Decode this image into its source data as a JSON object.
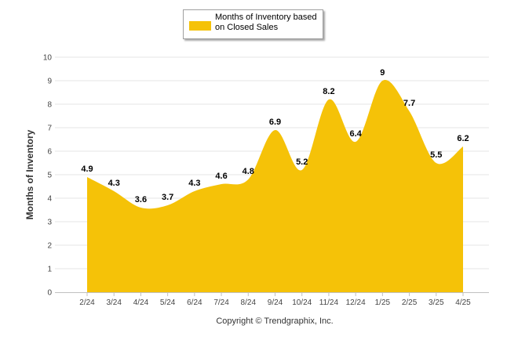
{
  "chart_data": {
    "type": "area",
    "title": "",
    "xlabel": "",
    "ylabel": "Months of Inventory",
    "ylim": [
      0,
      10
    ],
    "yticks": [
      "0",
      "1",
      "2",
      "3",
      "4",
      "5",
      "6",
      "7",
      "8",
      "9",
      "10"
    ],
    "grid": true,
    "legend_position": "top-center",
    "categories": [
      "2/24",
      "3/24",
      "4/24",
      "5/24",
      "6/24",
      "7/24",
      "8/24",
      "9/24",
      "10/24",
      "11/24",
      "12/24",
      "1/25",
      "2/25",
      "3/25",
      "4/25"
    ],
    "series": [
      {
        "name": "Months of Inventory based on Closed Sales",
        "values": [
          4.9,
          4.3,
          3.6,
          3.7,
          4.3,
          4.6,
          4.8,
          6.9,
          5.2,
          8.2,
          6.4,
          9,
          7.7,
          5.5,
          6.2
        ],
        "labels": [
          "4.9",
          "4.3",
          "3.6",
          "3.7",
          "4.3",
          "4.6",
          "4.8",
          "6.9",
          "5.2",
          "8.2",
          "6.4",
          "9",
          "7.7",
          "5.5",
          "6.2"
        ],
        "color": "#f5c208"
      }
    ],
    "credit": "Copyright © Trendgraphix, Inc."
  }
}
